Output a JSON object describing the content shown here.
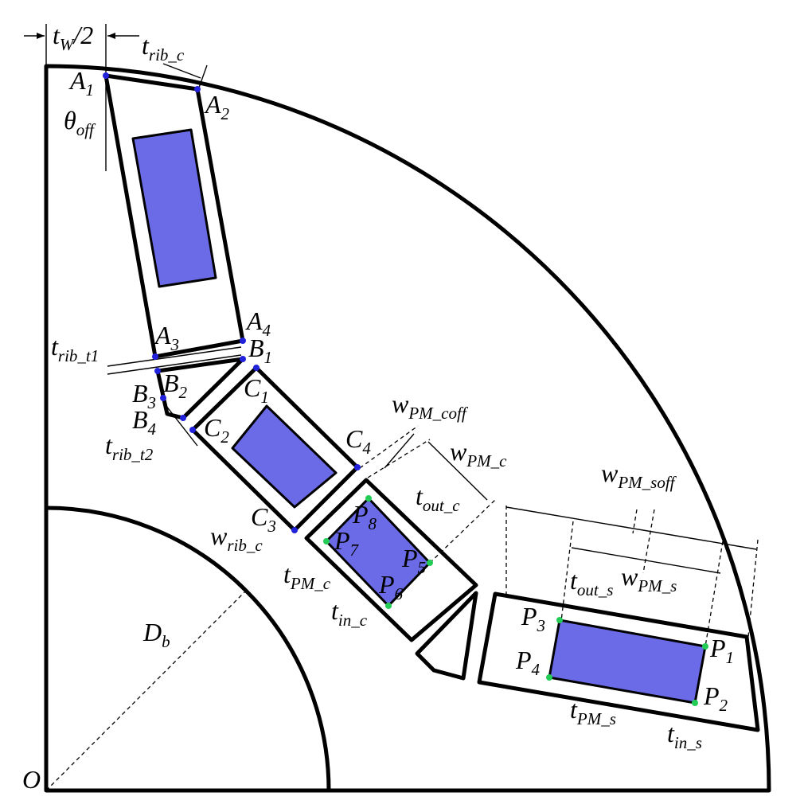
{
  "colors": {
    "magnet": "#6b6be8",
    "point_blue": "#2222dd",
    "point_green": "#22cc55",
    "line": "#000000"
  },
  "labels": {
    "origin": "O",
    "tw_half": "t_W/2",
    "trib_c": "t_rib_c",
    "theta_off": "θ_off",
    "A1": "A_1",
    "A2": "A_2",
    "A3": "A_3",
    "A4": "A_4",
    "B1": "B_1",
    "B2": "B_2",
    "B3": "B_3",
    "B4": "B_4",
    "C1": "C_1",
    "C2": "C_2",
    "C3": "C_3",
    "C4": "C_4",
    "trib_t1": "t_rib_t1",
    "trib_t2": "t_rib_t2",
    "wpm_coff": "w_PM_coff",
    "wpm_c": "w_PM_c",
    "tout_c": "t_out_c",
    "wrib_c": "w_rib_c",
    "tpm_c": "t_PM_c",
    "tin_c": "t_in_c",
    "P1": "P_1",
    "P2": "P_2",
    "P3": "P_3",
    "P4": "P_4",
    "P5": "P_5",
    "P6": "P_6",
    "P7": "P_7",
    "P8": "P_8",
    "wpm_soff": "w_PM_soff",
    "tout_s": "t_out_s",
    "wpm_s": "w_PM_s",
    "tpm_s": "t_PM_s",
    "tin_s": "t_in_s",
    "Db": "D_b"
  },
  "text": {
    "O": "O",
    "tw_main": "t",
    "tw_sub": "W",
    "tw_tail": "/2",
    "A1_m": "A",
    "A1_s": "1",
    "A2_m": "A",
    "A2_s": "2",
    "A3_m": "A",
    "A3_s": "3",
    "A4_m": "A",
    "A4_s": "4",
    "B1_m": "B",
    "B1_s": "1",
    "B2_m": "B",
    "B2_s": "2",
    "B3_m": "B",
    "B3_s": "3",
    "B4_m": "B",
    "B4_s": "4",
    "C1_m": "C",
    "C1_s": "1",
    "C2_m": "C",
    "C2_s": "2",
    "C3_m": "C",
    "C3_s": "3",
    "C4_m": "C",
    "C4_s": "4",
    "P1_m": "P",
    "P1_s": "1",
    "P2_m": "P",
    "P2_s": "2",
    "P3_m": "P",
    "P3_s": "3",
    "P4_m": "P",
    "P4_s": "4",
    "P5_m": "P",
    "P5_s": "5",
    "P6_m": "P",
    "P6_s": "6",
    "P7_m": "P",
    "P7_s": "7",
    "P8_m": "P",
    "P8_s": "8",
    "theta_m": "θ",
    "theta_s": "off",
    "tribc_m": "t",
    "tribc_s": "rib_c",
    "tribt1_m": "t",
    "tribt1_s": "rib_t1",
    "tribt2_m": "t",
    "tribt2_s": "rib_t2",
    "wcoff_m": "w",
    "wcoff_s": "PM_coff",
    "wc_m": "w",
    "wc_s": "PM_c",
    "toutc_m": "t",
    "toutc_s": "out_c",
    "wribc_m": "w",
    "wribc_s": "rib_c",
    "tpmc_m": "t",
    "tpmc_s": "PM_c",
    "tinc_m": "t",
    "tinc_s": "in_c",
    "wsoff_m": "w",
    "wsoff_s": "PM_soff",
    "touts_m": "t",
    "touts_s": "out_s",
    "ws_m": "w",
    "ws_s": "PM_s",
    "tpms_m": "t",
    "tpms_s": "PM_s",
    "tins_m": "t",
    "tins_s": "in_s",
    "Db_m": "D",
    "Db_s": "b"
  }
}
